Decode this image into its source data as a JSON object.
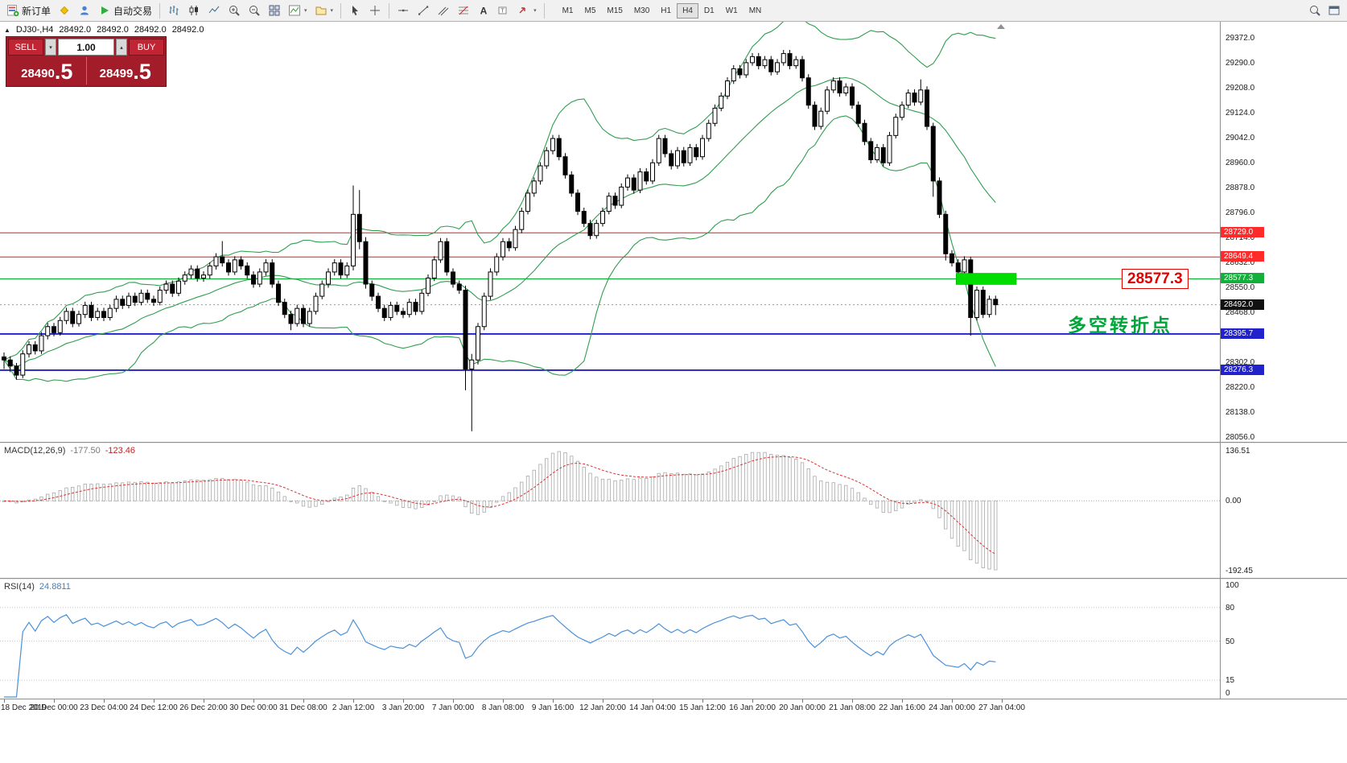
{
  "toolbar": {
    "new_order_label": "新订单",
    "auto_trading_label": "自动交易",
    "timeframes": [
      "M1",
      "M5",
      "M15",
      "M30",
      "H1",
      "H4",
      "D1",
      "W1",
      "MN"
    ],
    "active_timeframe": "H4"
  },
  "quote_panel": {
    "sell_label": "SELL",
    "buy_label": "BUY",
    "lot_size": "1.00",
    "sell_price_small": "28490",
    "sell_price_big": ".5",
    "buy_price_small": "28499",
    "buy_price_big": ".5"
  },
  "chart_header": {
    "symbol_period": "DJ30-,H4",
    "open": "28492.0",
    "high": "28492.0",
    "low": "28492.0",
    "close": "28492.0"
  },
  "chart_data": {
    "type": "candlestick",
    "symbol": "DJ30-",
    "period": "H4",
    "price_min": 28040,
    "price_max": 29425,
    "bollinger": {
      "period": 20,
      "deviation": 2,
      "color": "#2f9e4f"
    },
    "y_axis_labels": [
      "29372.0",
      "29290.0",
      "29208.0",
      "29124.0",
      "29042.0",
      "28960.0",
      "28878.0",
      "28796.0",
      "28714.0",
      "28632.0",
      "28550.0",
      "28468.0",
      "28302.0",
      "28220.0",
      "28138.0",
      "28056.0"
    ],
    "x_labels": [
      "18 Dec 2019",
      "20 Dec 00:00",
      "23 Dec 04:00",
      "24 Dec 12:00",
      "26 Dec 20:00",
      "30 Dec 00:00",
      "31 Dec 08:00",
      "2 Jan 12:00",
      "3 Jan 20:00",
      "7 Jan 00:00",
      "8 Jan 08:00",
      "9 Jan 16:00",
      "12 Jan 20:00",
      "14 Jan 04:00",
      "15 Jan 12:00",
      "16 Jan 20:00",
      "20 Jan 00:00",
      "21 Jan 08:00",
      "22 Jan 16:00",
      "24 Jan 00:00",
      "27 Jan 04:00"
    ],
    "levels": [
      {
        "price": 28729.0,
        "label": "28729.0",
        "color": "#ff2b2b",
        "width": 1.2
      },
      {
        "price": 28649.4,
        "label": "28649.4",
        "color": "#ff2b2b",
        "width": 1.2
      },
      {
        "price": 28577.3,
        "label": "28577.3",
        "color": "#12b03a",
        "width": 1.2
      },
      {
        "price": 28395.7,
        "label": "28395.7",
        "color": "#2222cc",
        "width": 1.8
      },
      {
        "price": 28276.3,
        "label": "28276.3",
        "color": "#2222cc",
        "width": 1.8
      }
    ],
    "current_price": {
      "value": 28492.0,
      "label": "28492.0",
      "badge_color": "#111111"
    },
    "annotations": {
      "highlight_box": {
        "price": 28577.3,
        "from_candle": 153,
        "to_candle": 162,
        "color": "#00dd00"
      },
      "price_callout": {
        "text": "28577.3",
        "color": "#e00000"
      },
      "comment": {
        "text": "多空转折点",
        "color": "#00a63a"
      }
    },
    "indicators": {
      "macd": {
        "label": "MACD(12,26,9)",
        "value_main": "-177.50",
        "value_signal": "-123.46",
        "fast": 12,
        "slow": 26,
        "signal": 9,
        "axis_labels": [
          "136.51",
          "0.00",
          "-192.45"
        ]
      },
      "rsi": {
        "label": "RSI(14)",
        "value": "24.8811",
        "period": 14,
        "axis_labels": [
          "100",
          "80",
          "50",
          "15",
          "0"
        ],
        "levels": [
          80,
          50,
          15
        ]
      }
    },
    "candles": [
      [
        28320,
        28335,
        28280,
        28310
      ],
      [
        28310,
        28322,
        28270,
        28290
      ],
      [
        28290,
        28300,
        28245,
        28260
      ],
      [
        28260,
        28342,
        28250,
        28330
      ],
      [
        28330,
        28372,
        28318,
        28360
      ],
      [
        28360,
        28372,
        28328,
        28340
      ],
      [
        28340,
        28402,
        28330,
        28390
      ],
      [
        28390,
        28432,
        28378,
        28420
      ],
      [
        28420,
        28432,
        28388,
        28400
      ],
      [
        28400,
        28452,
        28390,
        28440
      ],
      [
        28440,
        28482,
        28428,
        28470
      ],
      [
        28470,
        28482,
        28418,
        28430
      ],
      [
        28430,
        28472,
        28420,
        28460
      ],
      [
        28460,
        28502,
        28448,
        28490
      ],
      [
        28490,
        28502,
        28438,
        28450
      ],
      [
        28450,
        28482,
        28440,
        28470
      ],
      [
        28470,
        28482,
        28438,
        28450
      ],
      [
        28450,
        28492,
        28440,
        28480
      ],
      [
        28480,
        28522,
        28468,
        28510
      ],
      [
        28510,
        28522,
        28478,
        28490
      ],
      [
        28490,
        28532,
        28480,
        28520
      ],
      [
        28520,
        28532,
        28488,
        28500
      ],
      [
        28500,
        28542,
        28490,
        28530
      ],
      [
        28530,
        28542,
        28498,
        28510
      ],
      [
        28510,
        28522,
        28488,
        28500
      ],
      [
        28500,
        28552,
        28490,
        28540
      ],
      [
        28540,
        28572,
        28528,
        28560
      ],
      [
        28560,
        28572,
        28518,
        28530
      ],
      [
        28530,
        28582,
        28520,
        28570
      ],
      [
        28570,
        28602,
        28558,
        28590
      ],
      [
        28590,
        28622,
        28578,
        28610
      ],
      [
        28610,
        28622,
        28568,
        28580
      ],
      [
        28580,
        28602,
        28568,
        28590
      ],
      [
        28590,
        28632,
        28578,
        28620
      ],
      [
        28620,
        28662,
        28608,
        28650
      ],
      [
        28650,
        28702,
        28618,
        28630
      ],
      [
        28630,
        28642,
        28588,
        28600
      ],
      [
        28600,
        28652,
        28590,
        28640
      ],
      [
        28640,
        28652,
        28608,
        28620
      ],
      [
        28620,
        28632,
        28578,
        28590
      ],
      [
        28590,
        28602,
        28548,
        28560
      ],
      [
        28560,
        28612,
        28550,
        28600
      ],
      [
        28600,
        28642,
        28588,
        28630
      ],
      [
        28630,
        28642,
        28548,
        28560
      ],
      [
        28560,
        28572,
        28488,
        28500
      ],
      [
        28500,
        28512,
        28448,
        28460
      ],
      [
        28460,
        28472,
        28408,
        28430
      ],
      [
        28430,
        28492,
        28420,
        28480
      ],
      [
        28480,
        28492,
        28418,
        28430
      ],
      [
        28430,
        28482,
        28420,
        28470
      ],
      [
        28470,
        28532,
        28460,
        28520
      ],
      [
        28520,
        28572,
        28510,
        28560
      ],
      [
        28560,
        28612,
        28548,
        28600
      ],
      [
        28600,
        28642,
        28588,
        28630
      ],
      [
        28630,
        28642,
        28578,
        28590
      ],
      [
        28590,
        28632,
        28580,
        28620
      ],
      [
        28620,
        28885,
        28605,
        28790
      ],
      [
        28790,
        28870,
        28675,
        28700
      ],
      [
        28700,
        28715,
        28545,
        28560
      ],
      [
        28560,
        28572,
        28505,
        28520
      ],
      [
        28520,
        28532,
        28468,
        28480
      ],
      [
        28480,
        28492,
        28438,
        28450
      ],
      [
        28450,
        28502,
        28440,
        28490
      ],
      [
        28490,
        28502,
        28458,
        28470
      ],
      [
        28470,
        28482,
        28448,
        28460
      ],
      [
        28460,
        28512,
        28450,
        28500
      ],
      [
        28500,
        28512,
        28458,
        28470
      ],
      [
        28470,
        28542,
        28460,
        28530
      ],
      [
        28530,
        28592,
        28520,
        28580
      ],
      [
        28580,
        28652,
        28570,
        28640
      ],
      [
        28640,
        28712,
        28630,
        28700
      ],
      [
        28700,
        28712,
        28588,
        28600
      ],
      [
        28600,
        28612,
        28548,
        28560
      ],
      [
        28560,
        28572,
        28528,
        28540
      ],
      [
        28540,
        28555,
        28210,
        28280
      ],
      [
        28280,
        28330,
        28075,
        28310
      ],
      [
        28310,
        28432,
        28295,
        28420
      ],
      [
        28420,
        28532,
        28408,
        28520
      ],
      [
        28520,
        28612,
        28508,
        28600
      ],
      [
        28600,
        28662,
        28588,
        28650
      ],
      [
        28650,
        28712,
        28638,
        28700
      ],
      [
        28700,
        28712,
        28668,
        28680
      ],
      [
        28680,
        28752,
        28670,
        28740
      ],
      [
        28740,
        28812,
        28728,
        28800
      ],
      [
        28800,
        28872,
        28790,
        28860
      ],
      [
        28860,
        28912,
        28848,
        28900
      ],
      [
        28900,
        28962,
        28888,
        28950
      ],
      [
        28950,
        29012,
        28940,
        29000
      ],
      [
        29000,
        29052,
        28988,
        29040
      ],
      [
        29040,
        29052,
        28968,
        28980
      ],
      [
        28980,
        28992,
        28908,
        28920
      ],
      [
        28920,
        28932,
        28848,
        28860
      ],
      [
        28860,
        28872,
        28788,
        28800
      ],
      [
        28800,
        28812,
        28748,
        28760
      ],
      [
        28760,
        28772,
        28708,
        28720
      ],
      [
        28720,
        28772,
        28710,
        28760
      ],
      [
        28760,
        28812,
        28750,
        28800
      ],
      [
        28800,
        28862,
        28790,
        28850
      ],
      [
        28850,
        28862,
        28808,
        28820
      ],
      [
        28820,
        28892,
        28810,
        28880
      ],
      [
        28880,
        28922,
        28868,
        28910
      ],
      [
        28910,
        28922,
        28858,
        28870
      ],
      [
        28870,
        28942,
        28860,
        28930
      ],
      [
        28930,
        28942,
        28888,
        28900
      ],
      [
        28900,
        28972,
        28890,
        28960
      ],
      [
        28960,
        29052,
        28950,
        29040
      ],
      [
        29040,
        29052,
        28978,
        28990
      ],
      [
        28990,
        29002,
        28938,
        28950
      ],
      [
        28950,
        29012,
        28940,
        29000
      ],
      [
        29000,
        29012,
        28948,
        28960
      ],
      [
        28960,
        29022,
        28950,
        29010
      ],
      [
        29010,
        29022,
        28968,
        28980
      ],
      [
        28980,
        29052,
        28970,
        29040
      ],
      [
        29040,
        29102,
        29030,
        29090
      ],
      [
        29090,
        29152,
        29080,
        29140
      ],
      [
        29140,
        29192,
        29130,
        29180
      ],
      [
        29180,
        29242,
        29170,
        29230
      ],
      [
        29230,
        29282,
        29220,
        29270
      ],
      [
        29270,
        29282,
        29238,
        29250
      ],
      [
        29250,
        29302,
        29240,
        29290
      ],
      [
        29290,
        29322,
        29280,
        29310
      ],
      [
        29310,
        29322,
        29268,
        29280
      ],
      [
        29280,
        29312,
        29270,
        29300
      ],
      [
        29300,
        29312,
        29248,
        29260
      ],
      [
        29260,
        29302,
        29250,
        29290
      ],
      [
        29290,
        29332,
        29280,
        29320
      ],
      [
        29320,
        29332,
        29268,
        29280
      ],
      [
        29280,
        29312,
        29270,
        29300
      ],
      [
        29300,
        29312,
        29228,
        29240
      ],
      [
        29240,
        29252,
        29138,
        29150
      ],
      [
        29150,
        29162,
        29068,
        29080
      ],
      [
        29080,
        29142,
        29070,
        29130
      ],
      [
        29130,
        29212,
        29120,
        29200
      ],
      [
        29200,
        29242,
        29190,
        29230
      ],
      [
        29230,
        29242,
        29178,
        29190
      ],
      [
        29190,
        29222,
        29180,
        29210
      ],
      [
        29210,
        29222,
        29138,
        29150
      ],
      [
        29150,
        29162,
        29078,
        29090
      ],
      [
        29090,
        29102,
        29018,
        29030
      ],
      [
        29030,
        29042,
        28958,
        28970
      ],
      [
        28970,
        29022,
        28960,
        29010
      ],
      [
        29010,
        29022,
        28948,
        28960
      ],
      [
        28960,
        29062,
        28950,
        29050
      ],
      [
        29050,
        29122,
        29040,
        29110
      ],
      [
        29110,
        29162,
        29100,
        29150
      ],
      [
        29150,
        29202,
        29140,
        29190
      ],
      [
        29190,
        29202,
        29148,
        29160
      ],
      [
        29160,
        29235,
        29150,
        29200
      ],
      [
        29200,
        29212,
        29068,
        29080
      ],
      [
        29080,
        29092,
        28848,
        28900
      ],
      [
        28900,
        28912,
        28778,
        28790
      ],
      [
        28790,
        28802,
        28638,
        28660
      ],
      [
        28660,
        28672,
        28618,
        28630
      ],
      [
        28630,
        28642,
        28588,
        28600
      ],
      [
        28600,
        28652,
        28590,
        28640
      ],
      [
        28640,
        28650,
        28390,
        28450
      ],
      [
        28450,
        28552,
        28440,
        28540
      ],
      [
        28540,
        28552,
        28448,
        28460
      ],
      [
        28460,
        28522,
        28450,
        28510
      ],
      [
        28510,
        28522,
        28458,
        28492
      ]
    ]
  }
}
